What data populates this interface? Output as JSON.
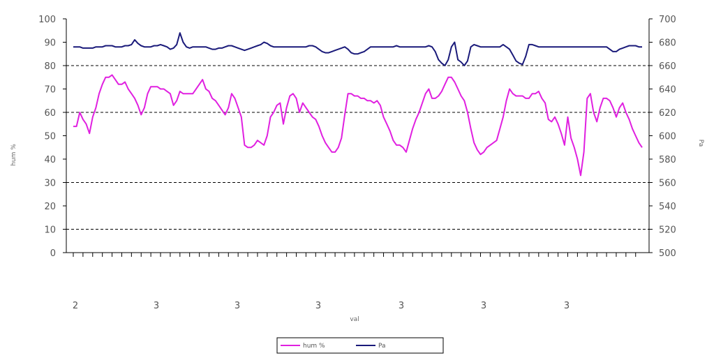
{
  "chart_data": {
    "type": "line",
    "title": "",
    "xlabel": "val",
    "ylabel_left": "hum %",
    "ylabel_right": "Pa",
    "ylim_left": [
      0,
      100
    ],
    "ylim_right": [
      500,
      700
    ],
    "yticks_left": [
      "0",
      "10",
      "20",
      "30",
      "40",
      "50",
      "60",
      "70",
      "80",
      "90",
      "100"
    ],
    "yticks_right": [
      "500",
      "520",
      "540",
      "560",
      "580",
      "600",
      "620",
      "640",
      "660",
      "680",
      "700"
    ],
    "x_group_labels": [
      "2",
      "3",
      "3",
      "3",
      "3",
      "3",
      "3"
    ],
    "grid_lines_left": [
      10,
      30,
      60,
      80
    ],
    "legend_position": "bottom",
    "colors": {
      "humidity": "#e020e0",
      "pressure": "#1a1a7a",
      "grid": "#000000"
    },
    "series": [
      {
        "name": "hum %",
        "axis": "left",
        "color": "#e020e0",
        "values": [
          54,
          54,
          60,
          57,
          55,
          51,
          58,
          62,
          68,
          72,
          75,
          75,
          76,
          74,
          72,
          72,
          73,
          70,
          68,
          66,
          63,
          59,
          62,
          68,
          71,
          71,
          71,
          70,
          70,
          69,
          68,
          63,
          65,
          69,
          68,
          68,
          68,
          68,
          70,
          72,
          74,
          70,
          69,
          66,
          65,
          63,
          61,
          59,
          62,
          68,
          66,
          62,
          58,
          46,
          45,
          45,
          46,
          48,
          47,
          46,
          50,
          58,
          60,
          63,
          64,
          55,
          62,
          67,
          68,
          66,
          60,
          64,
          62,
          60,
          58,
          57,
          54,
          50,
          47,
          45,
          43,
          43,
          45,
          49,
          59,
          68,
          68,
          67,
          67,
          66,
          66,
          65,
          65,
          64,
          65,
          63,
          58,
          55,
          52,
          48,
          46,
          46,
          45,
          43,
          48,
          53,
          57,
          60,
          64,
          68,
          70,
          66,
          66,
          67,
          69,
          72,
          75,
          75,
          73,
          70,
          67,
          65,
          60,
          53,
          47,
          44,
          42,
          43,
          45,
          46,
          47,
          48,
          53,
          58,
          65,
          70,
          68,
          67,
          67,
          67,
          66,
          66,
          68,
          68,
          69,
          66,
          64,
          57,
          56,
          58,
          55,
          51,
          46,
          58,
          49,
          45,
          40,
          33,
          43,
          66,
          68,
          60,
          56,
          62,
          66,
          66,
          65,
          62,
          58,
          62,
          64,
          60,
          57,
          53,
          50,
          47,
          45
        ]
      },
      {
        "name": "Pa",
        "axis": "right",
        "color": "#1a1a7a",
        "values": [
          676,
          676,
          676,
          675,
          675,
          675,
          675,
          676,
          676,
          676,
          677,
          677,
          677,
          676,
          676,
          676,
          677,
          677,
          678,
          682,
          679,
          677,
          676,
          676,
          676,
          677,
          677,
          678,
          677,
          676,
          674,
          675,
          678,
          688,
          680,
          676,
          675,
          676,
          676,
          676,
          676,
          676,
          675,
          674,
          674,
          675,
          675,
          676,
          677,
          677,
          676,
          675,
          674,
          673,
          674,
          675,
          676,
          677,
          678,
          680,
          679,
          677,
          676,
          676,
          676,
          676,
          676,
          676,
          676,
          676,
          676,
          676,
          676,
          677,
          677,
          676,
          674,
          672,
          671,
          671,
          672,
          673,
          674,
          675,
          676,
          674,
          671,
          670,
          670,
          671,
          672,
          674,
          676,
          676,
          676,
          676,
          676,
          676,
          676,
          676,
          677,
          676,
          676,
          676,
          676,
          676,
          676,
          676,
          676,
          676,
          677,
          676,
          672,
          665,
          662,
          660,
          665,
          676,
          680,
          665,
          663,
          660,
          664,
          676,
          678,
          677,
          676,
          676,
          676,
          676,
          676,
          676,
          676,
          678,
          676,
          674,
          669,
          664,
          662,
          661,
          668,
          678,
          678,
          677,
          676,
          676,
          676,
          676,
          676,
          676,
          676,
          676,
          676,
          676,
          676,
          676,
          676,
          676,
          676,
          676,
          676,
          676,
          676,
          676,
          676,
          676,
          674,
          672,
          672,
          674,
          675,
          676,
          677,
          677,
          677,
          676,
          676
        ]
      }
    ]
  }
}
